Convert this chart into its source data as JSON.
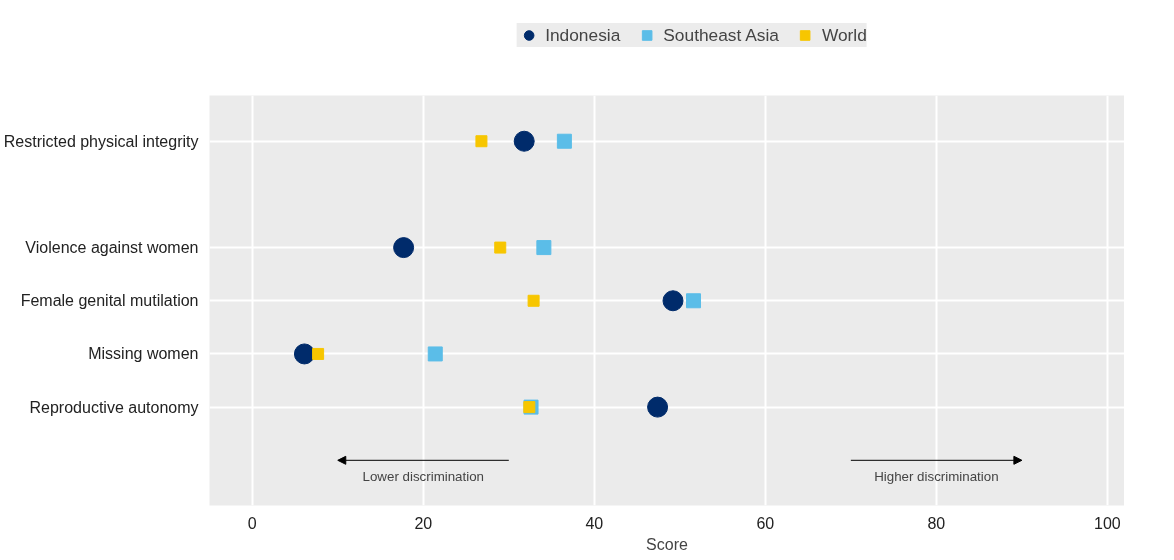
{
  "chart_data": {
    "type": "scatter",
    "xlabel": "Score",
    "categories": [
      "Restricted physical integrity",
      null,
      "Violence against women",
      "Female genital mutilation",
      "Missing women",
      "Reproductive autonomy",
      null
    ],
    "orientation": "horizontal",
    "xlim": [
      -5,
      102
    ],
    "xticks": [
      0,
      20,
      40,
      60,
      80,
      100
    ],
    "grid": true,
    "legend": "top",
    "series": [
      {
        "name": "Indonesia",
        "color": "#002b6b",
        "marker": "circle",
        "values": [
          31.8,
          null,
          17.7,
          49.2,
          6.1,
          47.4,
          null
        ]
      },
      {
        "name": "Southeast Asia",
        "color": "#5bbde8",
        "marker": "square",
        "values": [
          36.5,
          null,
          34.1,
          51.6,
          21.4,
          32.6,
          null
        ]
      },
      {
        "name": "World",
        "color": "#f7c600",
        "marker": "square",
        "values": [
          26.8,
          null,
          29.0,
          32.9,
          7.7,
          32.4,
          null
        ]
      }
    ],
    "annotations": [
      "Lower discrimination",
      "Higher discrimination"
    ]
  }
}
